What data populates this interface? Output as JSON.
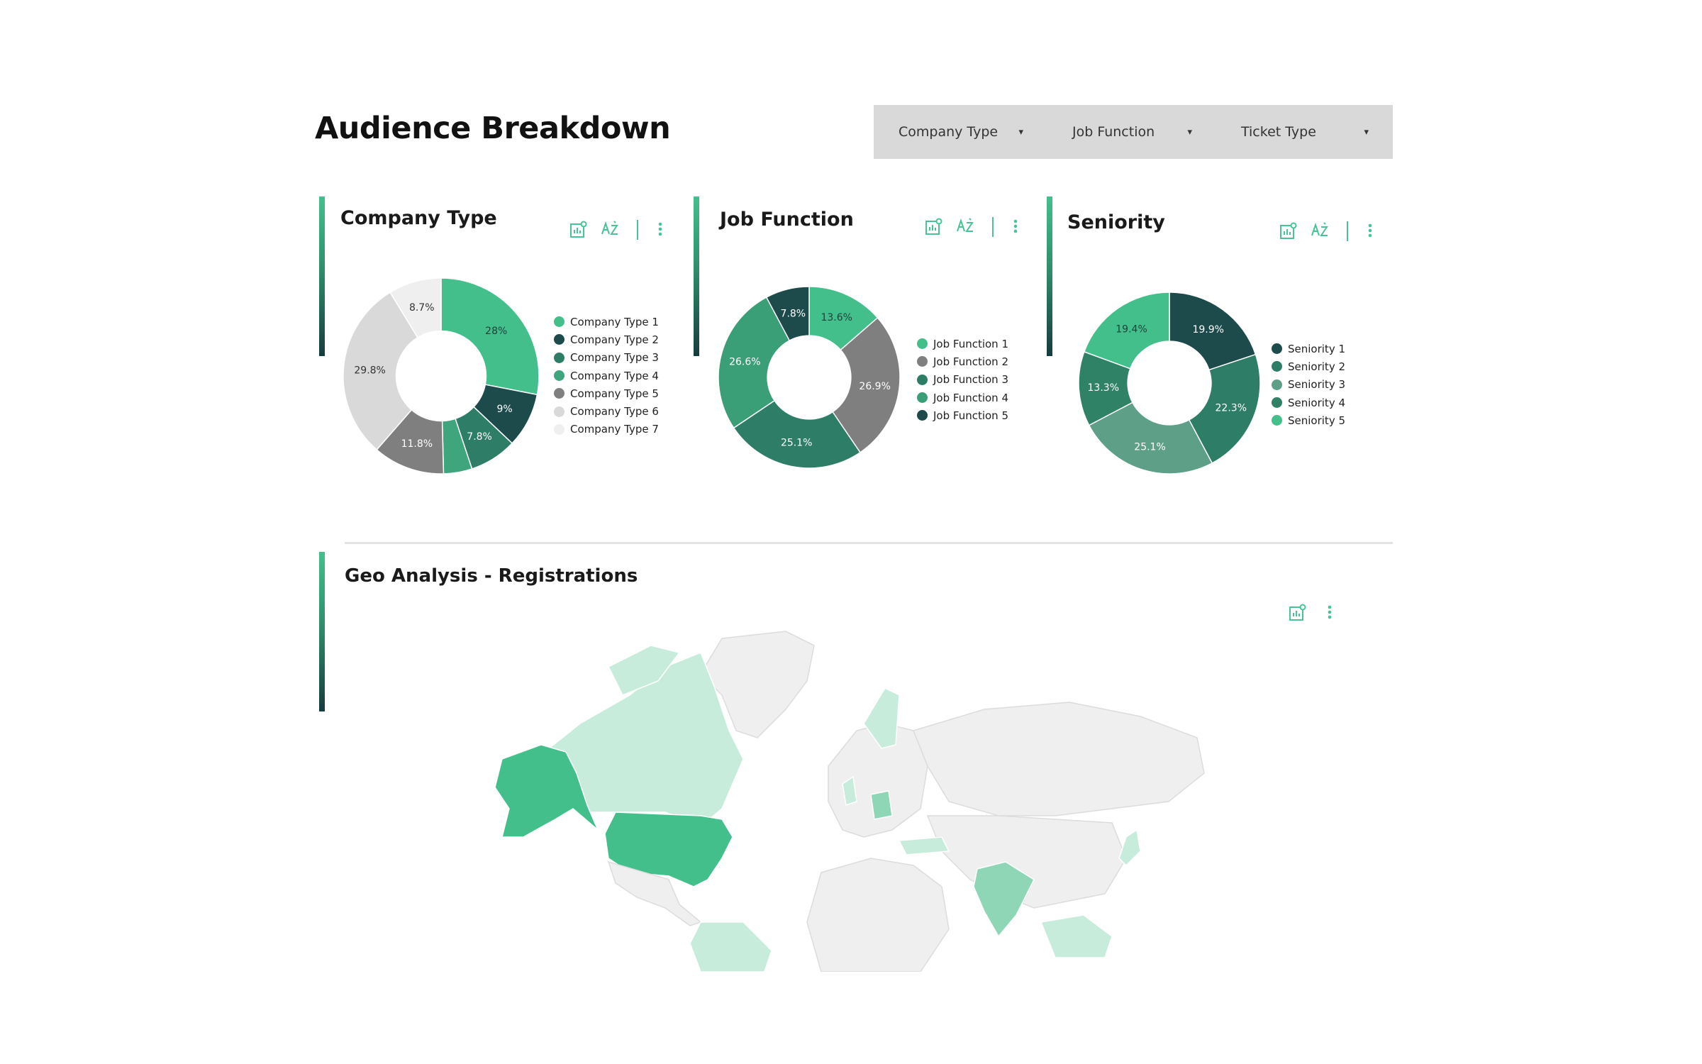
{
  "page": {
    "title": "Audience Breakdown"
  },
  "filters": [
    {
      "label": "Company Type"
    },
    {
      "label": "Job Function"
    },
    {
      "label": "Ticket Type"
    }
  ],
  "colors": {
    "teal": "#43bf8c",
    "dark_teal": "#1d4a4b",
    "mid_teal": "#2e7d66",
    "gray": "#7f7f7f",
    "light_gray": "#d9d9d9",
    "lighter_gray": "#efefef",
    "sage": "#5e9f88",
    "accent": "#48c393"
  },
  "cards": {
    "company_type": {
      "title": "Company Type"
    },
    "job_function": {
      "title": "Job Function"
    },
    "seniority": {
      "title": "Seniority"
    },
    "geo": {
      "title": "Geo Analysis - Registrations"
    }
  },
  "icons": {
    "chart_settings": "chart-settings-icon",
    "sort": "sort-az-icon",
    "more": "more-vert-icon"
  },
  "chart_data": [
    {
      "type": "pie",
      "title": "Company Type",
      "categories": [
        "Company Type 1",
        "Company Type 2",
        "Company Type 3",
        "Company Type 4",
        "Company Type 5",
        "Company Type 6",
        "Company Type 7"
      ],
      "values": [
        28,
        9,
        7.8,
        4.7,
        11.8,
        29.8,
        8.7
      ],
      "labels": [
        "28%",
        "9%",
        "7.8%",
        "",
        "11.8%",
        "29.8%",
        "8.7%"
      ],
      "colors": [
        "#43bf8c",
        "#1d4a4b",
        "#2e7d66",
        "#3fa57c",
        "#7f7f7f",
        "#d9d9d9",
        "#efefef"
      ],
      "legend_position": "right"
    },
    {
      "type": "pie",
      "title": "Job Function",
      "categories": [
        "Job Function 1",
        "Job Function 2",
        "Job Function 3",
        "Job Function 4",
        "Job Function 5"
      ],
      "values": [
        13.6,
        26.9,
        25.1,
        26.6,
        7.8
      ],
      "labels": [
        "13.6%",
        "26.9%",
        "25.1%",
        "26.6%",
        "7.8%"
      ],
      "colors": [
        "#43bf8c",
        "#7f7f7f",
        "#2e7d66",
        "#3a9f77",
        "#1d4a4b"
      ],
      "legend_position": "right"
    },
    {
      "type": "pie",
      "title": "Seniority",
      "categories": [
        "Seniority 1",
        "Seniority 2",
        "Seniority 3",
        "Seniority 4",
        "Seniority 5"
      ],
      "values": [
        19.9,
        22.3,
        25.1,
        13.3,
        19.4
      ],
      "labels": [
        "19.9%",
        "22.3%",
        "25.1%",
        "13.3%",
        "19.4%"
      ],
      "colors": [
        "#1d4a4b",
        "#2e7d66",
        "#5e9f88",
        "#2f8266",
        "#43bf8c"
      ],
      "legend_position": "right"
    }
  ]
}
